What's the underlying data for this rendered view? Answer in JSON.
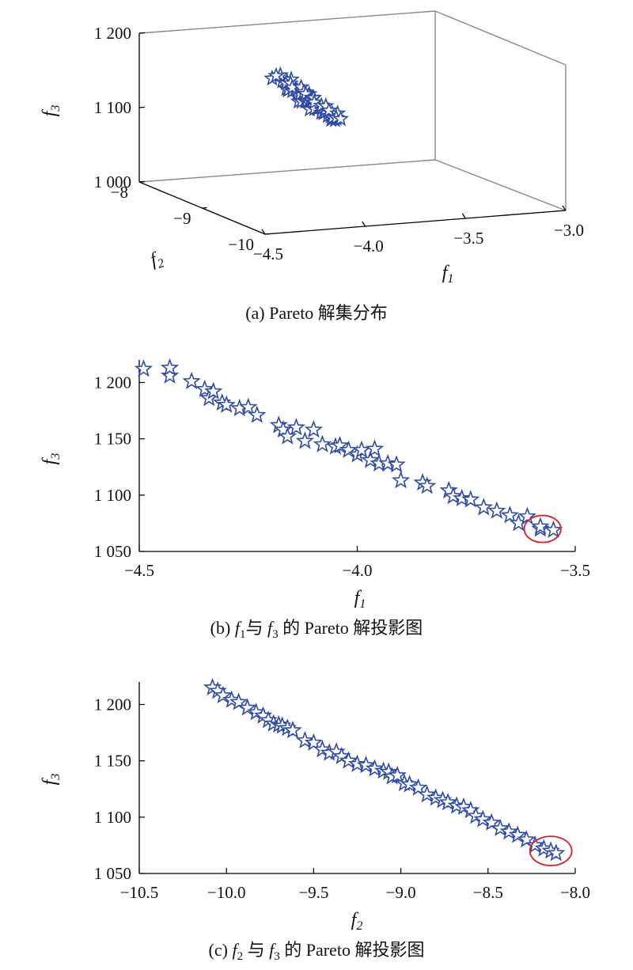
{
  "colors": {
    "marker": "#2f4ba3",
    "highlight": "#d6202a",
    "axis": "#000000",
    "box": "#888888"
  },
  "chart_data": [
    {
      "id": "a",
      "type": "scatter3d",
      "caption": "(a) Pareto 解集分布",
      "xlabel": "f",
      "xlabel_sub": "1",
      "ylabel": "f",
      "ylabel_sub": "2",
      "zlabel": "f",
      "zlabel_sub": "3",
      "xlim": [
        -4.5,
        -3.0
      ],
      "ylim": [
        -10,
        -8
      ],
      "zlim": [
        1000,
        1200
      ],
      "x_ticks": [
        -4.5,
        -4.0,
        -3.5,
        -3.0
      ],
      "x_tick_labels": [
        "−4.5",
        "−4.0",
        "−3.5",
        "−3.0"
      ],
      "y_ticks": [
        -8,
        -9,
        -10
      ],
      "y_tick_labels": [
        "−8",
        "−9",
        "−10"
      ],
      "z_ticks": [
        1000,
        1100,
        1200
      ],
      "z_tick_labels": [
        "1 000",
        "1 100",
        "1 200"
      ],
      "marker": "star",
      "grid": false
    },
    {
      "id": "b",
      "type": "scatter",
      "caption": "(b) f1与 f3 的 Pareto 解投影图",
      "caption_parts": [
        "(b) ",
        "f",
        "1",
        "与 ",
        "f",
        "3",
        " 的 Pareto 解投影图"
      ],
      "xlabel": "f",
      "xlabel_sub": "1",
      "ylabel": "f",
      "ylabel_sub": "3",
      "xlim": [
        -4.5,
        -3.5
      ],
      "ylim": [
        1050,
        1220
      ],
      "x_ticks": [
        -4.5,
        -4.0,
        -3.5
      ],
      "x_tick_labels": [
        "−4.5",
        "−4.0",
        "−3.5"
      ],
      "y_ticks": [
        1050,
        1100,
        1150,
        1200
      ],
      "y_tick_labels": [
        "1 050",
        "1 100",
        "1 150",
        "1 200"
      ],
      "marker": "star",
      "grid": false,
      "highlight_circle": {
        "cx": -3.575,
        "cy": 1070,
        "rx": 0.042,
        "ry": 12
      },
      "x": [
        -4.49,
        -4.43,
        -4.43,
        -4.38,
        -4.35,
        -4.34,
        -4.33,
        -4.31,
        -4.3,
        -4.27,
        -4.25,
        -4.23,
        -4.18,
        -4.17,
        -4.16,
        -4.14,
        -4.12,
        -4.1,
        -4.08,
        -4.05,
        -4.04,
        -4.02,
        -4.0,
        -3.99,
        -3.97,
        -3.96,
        -3.95,
        -3.93,
        -3.91,
        -3.9,
        -3.85,
        -3.84,
        -3.79,
        -3.78,
        -3.76,
        -3.74,
        -3.71,
        -3.68,
        -3.65,
        -3.63,
        -3.61,
        -3.58,
        -3.58,
        -3.55
      ],
      "y": [
        1212,
        1206,
        1213,
        1201,
        1194,
        1186,
        1192,
        1182,
        1180,
        1177,
        1178,
        1171,
        1162,
        1158,
        1152,
        1160,
        1148,
        1158,
        1145,
        1143,
        1144,
        1140,
        1136,
        1140,
        1131,
        1141,
        1128,
        1128,
        1127,
        1113,
        1111,
        1108,
        1104,
        1099,
        1097,
        1096,
        1089,
        1086,
        1082,
        1075,
        1081,
        1070,
        1072,
        1069
      ]
    },
    {
      "id": "c",
      "type": "scatter",
      "caption": "(c) f2 与 f3 的 Pareto 解投影图",
      "caption_parts": [
        "(c) ",
        "f",
        "2",
        " 与 ",
        "f",
        "3",
        " 的 Pareto 解投影图"
      ],
      "xlabel": "f",
      "xlabel_sub": "2",
      "ylabel": "f",
      "ylabel_sub": "3",
      "xlim": [
        -10.5,
        -8.0
      ],
      "ylim": [
        1050,
        1220
      ],
      "x_ticks": [
        -10.5,
        -10.0,
        -9.5,
        -9.0,
        -8.5,
        -8.0
      ],
      "x_tick_labels": [
        "−10.5",
        "−10.0",
        "−9.5",
        "−9.0",
        "−8.5",
        "−8.0"
      ],
      "y_ticks": [
        1050,
        1100,
        1150,
        1200
      ],
      "y_tick_labels": [
        "1 050",
        "1 100",
        "1 150",
        "1 200"
      ],
      "marker": "star",
      "grid": false,
      "highlight_circle": {
        "cx": -8.14,
        "cy": 1070,
        "rx": 0.12,
        "ry": 13
      },
      "x": [
        -10.08,
        -10.05,
        -10.02,
        -9.97,
        -9.93,
        -9.88,
        -9.83,
        -9.79,
        -9.76,
        -9.73,
        -9.7,
        -9.68,
        -9.65,
        -9.62,
        -9.55,
        -9.5,
        -9.45,
        -9.41,
        -9.37,
        -9.34,
        -9.3,
        -9.25,
        -9.2,
        -9.15,
        -9.1,
        -9.07,
        -9.05,
        -9.02,
        -8.98,
        -8.95,
        -8.9,
        -8.85,
        -8.8,
        -8.76,
        -8.73,
        -8.68,
        -8.64,
        -8.6,
        -8.57,
        -8.53,
        -8.48,
        -8.43,
        -8.38,
        -8.33,
        -8.28,
        -8.23,
        -8.18,
        -8.14,
        -8.11
      ],
      "y": [
        1215,
        1212,
        1208,
        1204,
        1202,
        1197,
        1193,
        1190,
        1186,
        1183,
        1182,
        1181,
        1179,
        1177,
        1168,
        1166,
        1160,
        1157,
        1158,
        1154,
        1150,
        1147,
        1146,
        1143,
        1141,
        1140,
        1136,
        1137,
        1130,
        1129,
        1126,
        1120,
        1117,
        1115,
        1113,
        1110,
        1109,
        1106,
        1101,
        1098,
        1095,
        1090,
        1087,
        1084,
        1080,
        1075,
        1072,
        1070,
        1068
      ]
    }
  ]
}
